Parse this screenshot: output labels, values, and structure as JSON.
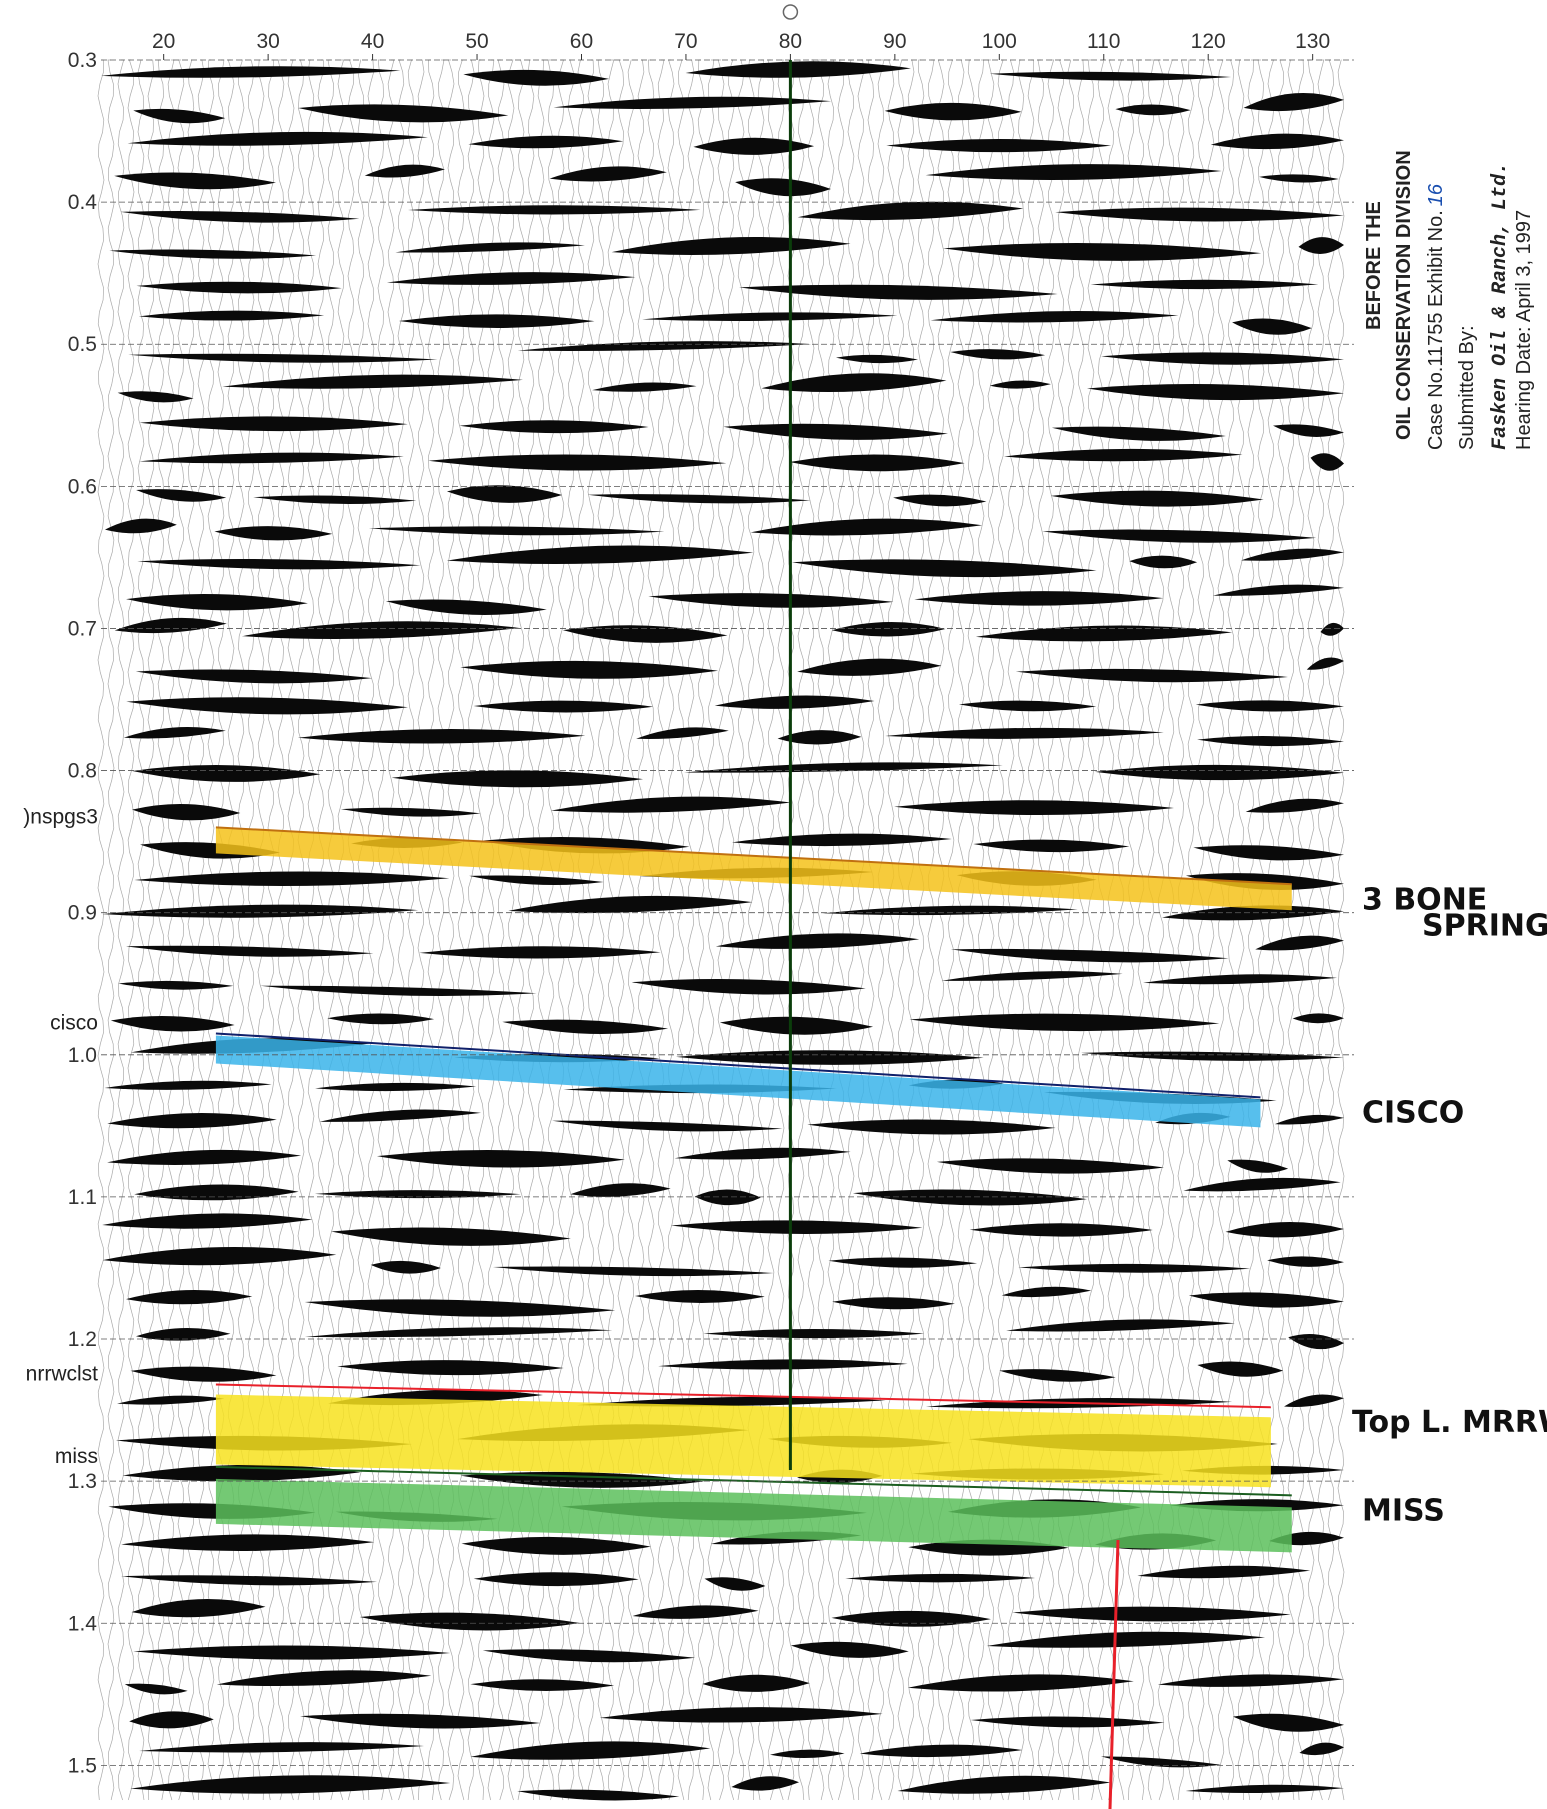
{
  "section": {
    "xlim": [
      14,
      133
    ],
    "xticks": [
      20,
      30,
      40,
      50,
      60,
      70,
      80,
      90,
      100,
      110,
      120,
      130
    ],
    "ylim": [
      0.3,
      1.53
    ],
    "yticks": [
      0.3,
      0.4,
      0.5,
      0.6,
      0.7,
      0.8,
      0.9,
      {
        "value": 1,
        "label": "1.0"
      },
      1.1,
      1.2,
      1.3,
      1.4,
      1.5
    ],
    "well_trace": 80,
    "horizons": [
      {
        "label": ")nspgs3",
        "annotation": [
          "3 BONE",
          "SPRING"
        ],
        "color": "#f5c21a",
        "start_trace": 25,
        "end_trace": 128,
        "start_time": 0.84,
        "end_time": 0.88
      },
      {
        "label": "cisco",
        "annotation": [
          "CISCO"
        ],
        "color": "#3ab4ea",
        "start_trace": 25,
        "end_trace": 125,
        "start_time": 0.985,
        "end_time": 1.03
      },
      {
        "label": "nrrwclst",
        "annotation": [
          "Top L. MRRW"
        ],
        "color": "#f7e21e",
        "start_trace": 25,
        "end_trace": 126,
        "start_time": 1.232,
        "end_time": 1.248
      },
      {
        "label": "miss",
        "annotation": [
          "MISS"
        ],
        "color": "#5cbf5c",
        "start_trace": 25,
        "end_trace": 128,
        "start_time": 1.29,
        "end_time": 1.31
      }
    ]
  },
  "stamp": {
    "lines": [
      "BEFORE THE",
      "OIL CONSERVATION DIVISION",
      "Case No.11755 Exhibit No.",
      "Submitted By:",
      "Fasken Oil & Ranch, Ltd.",
      "Hearing Date: April 3, 1997"
    ],
    "exhibit_number": "16"
  }
}
